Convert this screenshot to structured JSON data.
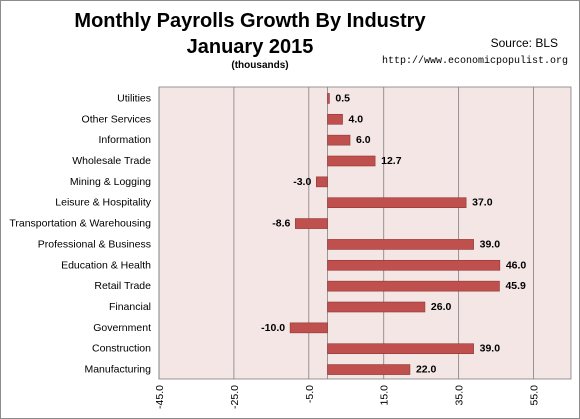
{
  "title_line1": "Monthly Payrolls Growth By Industry",
  "title_line2": "January 2015",
  "subtitle": "(thousands)",
  "source": "Source:  BLS",
  "url": "http://www.economicpopulist.org",
  "colors": {
    "plot_bg": "#f5e6e6",
    "bar_fill": "#c0504d",
    "bar_stroke": "#8c3836",
    "grid": "#7f7f7f"
  },
  "chart_data": {
    "type": "bar",
    "orientation": "horizontal",
    "categories": [
      "Utilities",
      "Other Services",
      "Information",
      "Wholesale Trade",
      "Mining & Logging",
      "Leisure & Hospitality",
      "Transportation & Warehousing",
      "Professional & Business",
      "Education & Health",
      "Retail Trade",
      "Financial",
      "Government",
      "Construction",
      "Manufacturing"
    ],
    "values": [
      0.5,
      4.0,
      6.0,
      12.7,
      -3.0,
      37.0,
      -8.6,
      39.0,
      46.0,
      45.9,
      26.0,
      -10.0,
      39.0,
      22.0
    ],
    "value_labels": [
      "0.5",
      "4.0",
      "6.0",
      "12.7",
      "-3.0",
      "37.0",
      "-8.6",
      "39.0",
      "46.0",
      "45.9",
      "26.0",
      "-10.0",
      "39.0",
      "22.0"
    ],
    "xlim": [
      -45,
      65
    ],
    "x_ticks": [
      -45,
      -25,
      -5,
      15,
      35,
      55
    ],
    "x_tick_labels": [
      "-45.0",
      "-25.0",
      "-5.0",
      "15.0",
      "35.0",
      "55.0"
    ],
    "grid": true
  }
}
